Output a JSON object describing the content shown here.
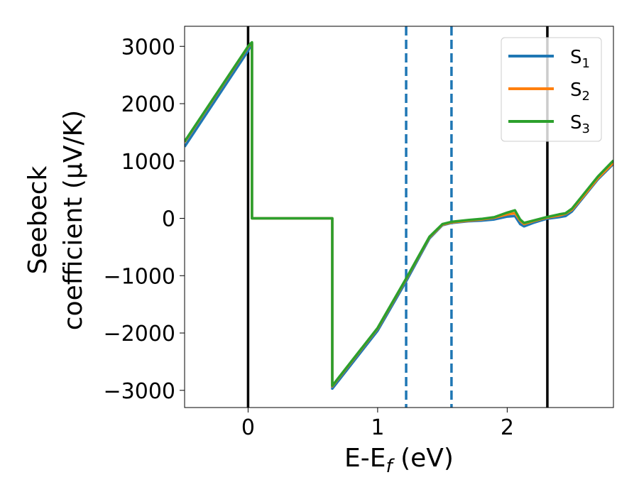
{
  "chart_data": {
    "type": "line",
    "title": "",
    "xlabel": {
      "base": "E-E",
      "sub": "f",
      "tail": " (eV)"
    },
    "ylabel": {
      "line1": "Seebeck",
      "line2": "coefficient  (μV/K)"
    },
    "xlim": [
      -0.49,
      2.82
    ],
    "ylim": [
      -3300,
      3350
    ],
    "xticks": [
      0,
      1,
      2
    ],
    "xtick_labels": [
      "0",
      "1",
      "2"
    ],
    "yticks": [
      -3000,
      -2000,
      -1000,
      0,
      1000,
      2000,
      3000
    ],
    "ytick_labels": [
      "−3000",
      "−2000",
      "−1000",
      "0",
      "1000",
      "2000",
      "3000"
    ],
    "grid": false,
    "legend_position": "top-right",
    "vlines": [
      {
        "x": 0.0,
        "color": "#000000",
        "style": "solid"
      },
      {
        "x": 1.22,
        "color": "#1f77b4",
        "style": "dashed"
      },
      {
        "x": 1.57,
        "color": "#1f77b4",
        "style": "dashed"
      },
      {
        "x": 2.31,
        "color": "#000000",
        "style": "solid"
      }
    ],
    "series": [
      {
        "name": "S",
        "sub": "1",
        "color": "#1f77b4",
        "x": [
          -0.49,
          0.0,
          0.02,
          0.03,
          0.03,
          0.65,
          0.65,
          0.65,
          1.0,
          1.22,
          1.4,
          1.5,
          1.57,
          1.7,
          1.8,
          1.9,
          2.0,
          2.06,
          2.1,
          2.13,
          2.2,
          2.3,
          2.4,
          2.45,
          2.5,
          2.6,
          2.7,
          2.82
        ],
        "y": [
          1250,
          2920,
          3010,
          3050,
          0,
          0,
          -1500,
          -2970,
          -1960,
          -1100,
          -350,
          -120,
          -80,
          -50,
          -40,
          -20,
          30,
          40,
          -100,
          -140,
          -80,
          -10,
          20,
          40,
          120,
          400,
          680,
          950
        ]
      },
      {
        "name": "S",
        "sub": "2",
        "color": "#ff7f0e",
        "x": [
          -0.49,
          0.0,
          0.02,
          0.03,
          0.03,
          0.65,
          0.65,
          0.65,
          1.0,
          1.22,
          1.4,
          1.5,
          1.57,
          1.7,
          1.8,
          1.9,
          2.0,
          2.06,
          2.1,
          2.13,
          2.2,
          2.3,
          2.4,
          2.45,
          2.5,
          2.6,
          2.7,
          2.82
        ],
        "y": [
          1330,
          2990,
          3040,
          3060,
          0,
          0,
          -1500,
          -2930,
          -1920,
          -1060,
          -330,
          -110,
          -70,
          -40,
          -20,
          10,
          70,
          90,
          -40,
          -100,
          -50,
          10,
          50,
          80,
          150,
          420,
          700,
          970
        ]
      },
      {
        "name": "S",
        "sub": "3",
        "color": "#2ca02c",
        "x": [
          -0.49,
          0.0,
          0.02,
          0.03,
          0.03,
          0.65,
          0.65,
          0.65,
          1.0,
          1.22,
          1.4,
          1.5,
          1.57,
          1.7,
          1.8,
          1.9,
          2.0,
          2.06,
          2.1,
          2.13,
          2.2,
          2.3,
          2.4,
          2.45,
          2.5,
          2.6,
          2.7,
          2.82
        ],
        "y": [
          1340,
          3000,
          3050,
          3070,
          0,
          0,
          -1500,
          -2920,
          -1910,
          -1050,
          -320,
          -100,
          -60,
          -30,
          -10,
          20,
          100,
          140,
          -20,
          -80,
          -40,
          20,
          70,
          90,
          170,
          450,
          730,
          1010
        ]
      }
    ]
  }
}
